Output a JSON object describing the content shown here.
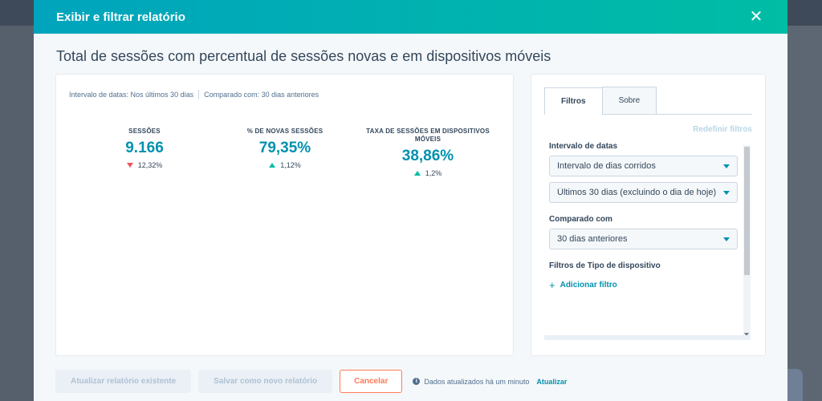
{
  "modal": {
    "title": "Exibir e filtrar relatório",
    "close_glyph": "✕"
  },
  "report": {
    "title": "Total de sessões com percentual de sessões novas e em dispositivos móveis",
    "date_range_text": "Intervalo de datas: Nos últimos 30 dias",
    "compare_text": "Comparado com: 30 dias anteriores"
  },
  "kpis": [
    {
      "label": "SESSÕES",
      "value": "9.166",
      "delta": "12,32%",
      "direction": "down"
    },
    {
      "label": "% DE NOVAS SESSÕES",
      "value": "79,35%",
      "delta": "1,12%",
      "direction": "up"
    },
    {
      "label_line1": "TAXA DE SESSÕES EM DISPOSITIVOS",
      "label_line2": "MÓVEIS",
      "value": "38,86%",
      "delta": "1,2%",
      "direction": "up"
    }
  ],
  "filters_panel": {
    "tabs": [
      {
        "label": "Filtros",
        "active": true
      },
      {
        "label": "Sobre",
        "active": false
      }
    ],
    "reset_label": "Redefinir filtros",
    "date_range": {
      "label": "Intervalo de datas",
      "type_value": "Intervalo de dias corridos",
      "period_value": "Últimos 30 dias (excluindo o dia de hoje)"
    },
    "compare": {
      "label": "Comparado com",
      "value": "30 dias anteriores"
    },
    "device_filters": {
      "label": "Filtros de Tipo de dispositivo",
      "add_label": "Adicionar filtro"
    }
  },
  "footer": {
    "update_existing": "Atualizar relatório existente",
    "save_new": "Salvar como novo relatório",
    "cancel": "Cancelar",
    "updated_text": "Dados atualizados há um minuto",
    "refresh": "Atualizar"
  },
  "colors": {
    "accent": "#0091ae",
    "header_gradient_start": "#00a4bd",
    "header_gradient_end": "#00bda5",
    "cancel": "#ff7a59",
    "down": "#f2545b",
    "up": "#00bda5"
  }
}
